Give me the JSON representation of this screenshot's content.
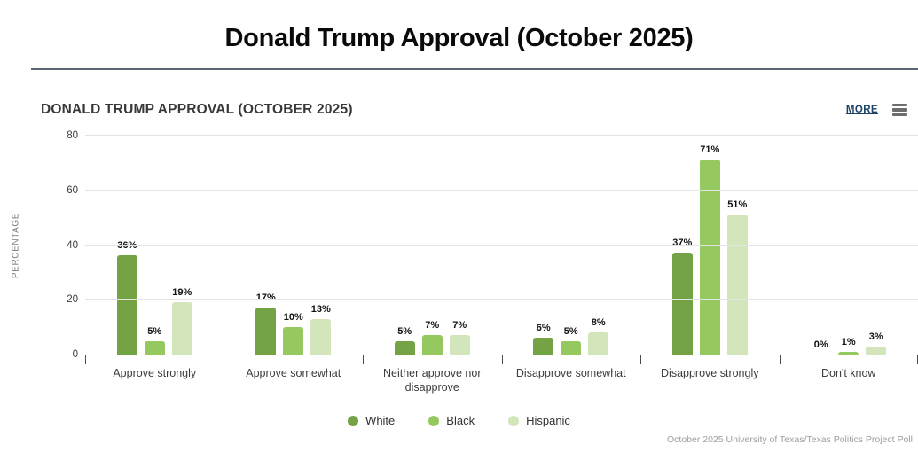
{
  "page_title": "Donald Trump Approval (October 2025)",
  "widget": {
    "title": "DONALD TRUMP APPROVAL (OCTOBER 2025)",
    "more_label": "MORE",
    "menu_icon": "hamburger-icon",
    "source": "October 2025 University of Texas/Texas Politics Project Poll"
  },
  "colors": {
    "more_link": "#1d4466",
    "axis_line": "#3f3f3f",
    "gridline": "#e4e4e4",
    "series_white": "#74a346",
    "series_black": "#95c95f",
    "series_hispanic": "#d3e5bb"
  },
  "chart_data": {
    "type": "bar",
    "title": "DONALD TRUMP APPROVAL (OCTOBER 2025)",
    "xlabel": "",
    "ylabel": "PERCENTAGE",
    "ylim": [
      0,
      80
    ],
    "yticks": [
      0,
      20,
      40,
      60,
      80
    ],
    "grid": true,
    "value_suffix": "%",
    "legend_position": "bottom",
    "categories": [
      "Approve strongly",
      "Approve somewhat",
      "Neither approve nor disapprove",
      "Disapprove somewhat",
      "Disapprove strongly",
      "Don't know"
    ],
    "series": [
      {
        "name": "White",
        "color": "#74a346",
        "values": [
          36,
          17,
          5,
          6,
          37,
          0
        ]
      },
      {
        "name": "Black",
        "color": "#95c95f",
        "values": [
          5,
          10,
          7,
          5,
          71,
          1
        ]
      },
      {
        "name": "Hispanic",
        "color": "#d3e5bb",
        "values": [
          19,
          13,
          7,
          8,
          51,
          3
        ]
      }
    ]
  }
}
